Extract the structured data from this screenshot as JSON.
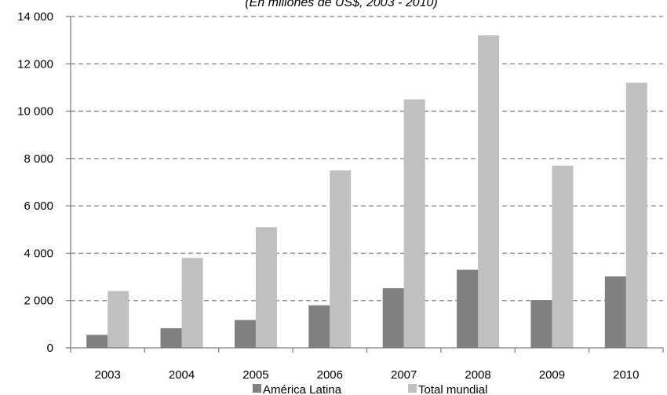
{
  "chart_data": {
    "type": "bar",
    "subtitle": "(En millones de US$, 2003 - 2010)",
    "categories": [
      "2003",
      "2004",
      "2005",
      "2006",
      "2007",
      "2008",
      "2009",
      "2010"
    ],
    "series": [
      {
        "name": "América Latina",
        "color": "#808080",
        "values": [
          550,
          830,
          1180,
          1800,
          2520,
          3300,
          2020,
          3020
        ]
      },
      {
        "name": "Total mundial",
        "color": "#c0c0c0",
        "values": [
          2400,
          3800,
          5100,
          7500,
          10500,
          13200,
          7700,
          11200
        ]
      }
    ],
    "ylim": [
      0,
      14000
    ],
    "yticks": [
      0,
      2000,
      4000,
      6000,
      8000,
      10000,
      12000,
      14000
    ],
    "ytick_labels": [
      "0",
      "2 000",
      "4 000",
      "6 000",
      "8 000",
      "10 000",
      "12 000",
      "14 000"
    ],
    "grid": true,
    "legend_position": "bottom"
  }
}
